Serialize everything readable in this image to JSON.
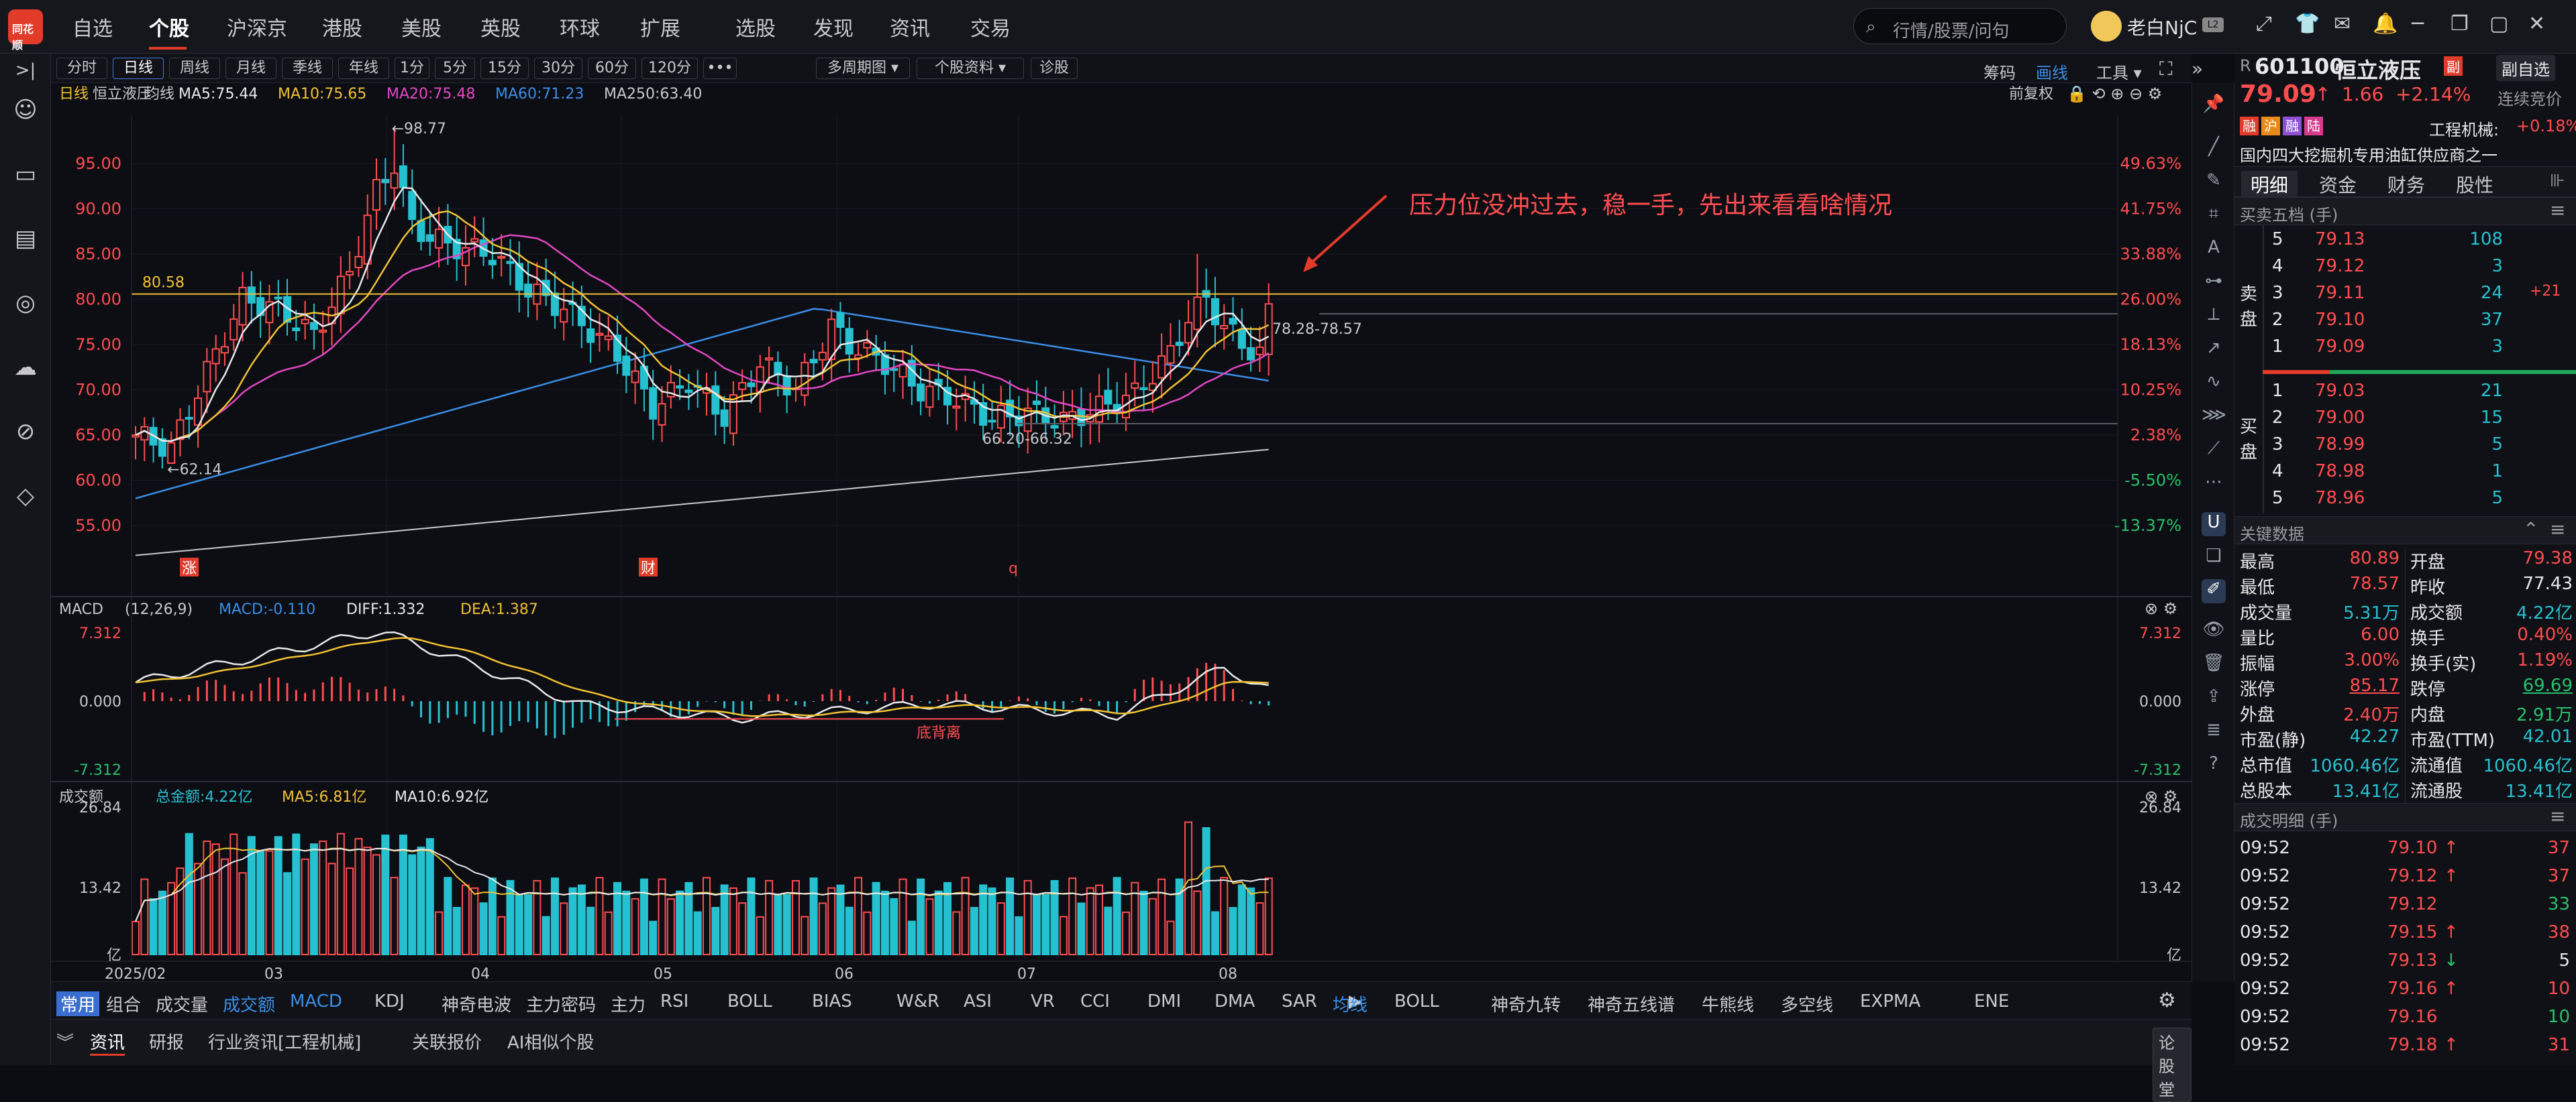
{
  "app": {
    "logo_text": "同花顺"
  },
  "top_nav": [
    "自选",
    "个股",
    "沪深京",
    "港股",
    "美股",
    "英股",
    "环球",
    "扩展",
    "选股",
    "发现",
    "资讯",
    "交易"
  ],
  "top_nav_active": 1,
  "search": {
    "placeholder": "行情/股票/问句"
  },
  "user": {
    "name": "老白NjC",
    "level": "L2"
  },
  "toolbar": {
    "periods": [
      "分时",
      "日线",
      "周线",
      "月线",
      "季线",
      "年线",
      "1分",
      "5分",
      "15分",
      "30分",
      "60分",
      "120分",
      "•••"
    ],
    "active_period": "日线",
    "multi_period": "多周期图",
    "stock_data": "个股资料",
    "diagnose": "诊股",
    "right_items": [
      "筹码",
      "画线",
      "工具"
    ]
  },
  "chart_header": {
    "items": [
      {
        "text": "日线",
        "color": "#f1c232"
      },
      {
        "text": "恒立液压",
        "color": "#c8c8cc"
      },
      {
        "text": "均线",
        "color": "#c8c8cc"
      },
      {
        "text": "MA5:75.44",
        "color": "#e8e8ea"
      },
      {
        "text": "MA10:75.65",
        "color": "#f1c232"
      },
      {
        "text": "MA20:75.48",
        "color": "#e447c4"
      },
      {
        "text": "MA60:71.23",
        "color": "#3a8ee6"
      },
      {
        "text": "MA250:63.40",
        "color": "#c8c8cc"
      }
    ],
    "adjust": "前复权"
  },
  "price_axis": {
    "labels": [
      "95.00",
      "90.00",
      "85.00",
      "80.00",
      "75.00",
      "70.00",
      "65.00",
      "60.00",
      "55.00"
    ],
    "pct": [
      "49.63%",
      "41.75%",
      "33.88%",
      "26.00%",
      "18.13%",
      "10.25%",
      "2.38%",
      "-5.50%",
      "-13.37%"
    ]
  },
  "annotations": {
    "high": "98.77",
    "low": "62.14",
    "hline": "80.58",
    "range1": "66.20-66.32",
    "range2": "78.28-78.57",
    "comment": "压力位没冲过去，稳一手，先出来看看啥情况",
    "markers": [
      "涨",
      "财",
      "q"
    ]
  },
  "macd": {
    "label": "MACD",
    "params": "(12,26,9)",
    "macd": "MACD:-0.110",
    "diff": "DIFF:1.332",
    "dea": "DEA:1.387",
    "axis": [
      "7.312",
      "0.000",
      "-7.312"
    ],
    "divergence": "底背离"
  },
  "volume": {
    "label": "成交额",
    "total": "总金额:4.22亿",
    "ma5": "MA5:6.81亿",
    "ma10": "MA10:6.92亿",
    "axis": [
      "26.84",
      "13.42",
      "亿"
    ]
  },
  "x_axis": [
    "2025/02",
    "03",
    "04",
    "05",
    "06",
    "07",
    "08"
  ],
  "indicator_tabs": [
    "常用",
    "组合",
    "成交量",
    "成交额",
    "MACD",
    "KDJ",
    "神奇电波",
    "主力密码",
    "主力",
    "RSI",
    "BOLL",
    "BIAS",
    "W&R",
    "ASI",
    "VR",
    "CCI",
    "DMI",
    "DMA",
    "SAR"
  ],
  "overlay_tabs": [
    "均线",
    "BOLL",
    "神奇九转",
    "神奇五线谱",
    "牛熊线",
    "多空线",
    "EXPMA",
    "ENE"
  ],
  "news_tabs": [
    "资讯",
    "研报",
    "行业资讯[工程机械]",
    "关联报价",
    "AI相似个股"
  ],
  "news_right": "论股堂",
  "quote": {
    "code": "601100",
    "name": "恒立液压",
    "badge": "副",
    "compare": "副自选",
    "price": "79.09",
    "arrow": "↑",
    "change": "1.66",
    "pct": "+2.14%",
    "status": "连续竞价",
    "tags": [
      "融",
      "沪",
      "融",
      "陆"
    ],
    "industry": "工程机械:",
    "industry_pct": "+0.18%",
    "desc": "国内四大挖掘机专用油缸供应商之一"
  },
  "quote_tabs": [
    "明细",
    "资金",
    "财务",
    "股性"
  ],
  "order_book": {
    "title": "买卖五档 (手)",
    "sell_label": "卖盘",
    "buy_label": "买盘",
    "asks": [
      {
        "lv": "5",
        "p": "79.13",
        "v": "108"
      },
      {
        "lv": "4",
        "p": "79.12",
        "v": "3"
      },
      {
        "lv": "3",
        "p": "79.11",
        "v": "24",
        "x": "+21"
      },
      {
        "lv": "2",
        "p": "79.10",
        "v": "37"
      },
      {
        "lv": "1",
        "p": "79.09",
        "v": "3"
      }
    ],
    "bids": [
      {
        "lv": "1",
        "p": "79.03",
        "v": "21"
      },
      {
        "lv": "2",
        "p": "79.00",
        "v": "15"
      },
      {
        "lv": "3",
        "p": "78.99",
        "v": "5"
      },
      {
        "lv": "4",
        "p": "78.98",
        "v": "1"
      },
      {
        "lv": "5",
        "p": "78.96",
        "v": "5"
      }
    ]
  },
  "key_data": {
    "title": "关键数据",
    "rows": [
      [
        "最高",
        "80.89",
        "red",
        "开盘",
        "79.38",
        "red"
      ],
      [
        "最低",
        "78.57",
        "red",
        "昨收",
        "77.43",
        "white"
      ],
      [
        "成交量",
        "5.31万",
        "cyan",
        "成交额",
        "4.22亿",
        "cyan"
      ],
      [
        "量比",
        "6.00",
        "red",
        "换手",
        "0.40%",
        "red"
      ],
      [
        "振幅",
        "3.00%",
        "red",
        "换手(实)",
        "1.19%",
        "red"
      ],
      [
        "涨停",
        "85.17",
        "red",
        "跌停",
        "69.69",
        "green"
      ],
      [
        "外盘",
        "2.40万",
        "red",
        "内盘",
        "2.91万",
        "green"
      ],
      [
        "市盈(静)",
        "42.27",
        "cyan",
        "市盈(TTM)",
        "42.01",
        "cyan"
      ],
      [
        "总市值",
        "1060.46亿",
        "cyan",
        "流通值",
        "1060.46亿",
        "cyan"
      ],
      [
        "总股本",
        "13.41亿",
        "cyan",
        "流通股",
        "13.41亿",
        "cyan"
      ]
    ]
  },
  "trades": {
    "title": "成交明细 (手)",
    "rows": [
      [
        "09:52",
        "79.10",
        "↑",
        "37",
        "red"
      ],
      [
        "09:52",
        "79.12",
        "↑",
        "37",
        "red"
      ],
      [
        "09:52",
        "79.12",
        "",
        "33",
        "green"
      ],
      [
        "09:52",
        "79.15",
        "↑",
        "38",
        "red"
      ],
      [
        "09:52",
        "79.13",
        "↓",
        "5",
        "white"
      ],
      [
        "09:52",
        "79.16",
        "↑",
        "10",
        "red"
      ],
      [
        "09:52",
        "79.16",
        "",
        "10",
        "green"
      ],
      [
        "09:52",
        "79.18",
        "↑",
        "31",
        "red"
      ]
    ]
  }
}
